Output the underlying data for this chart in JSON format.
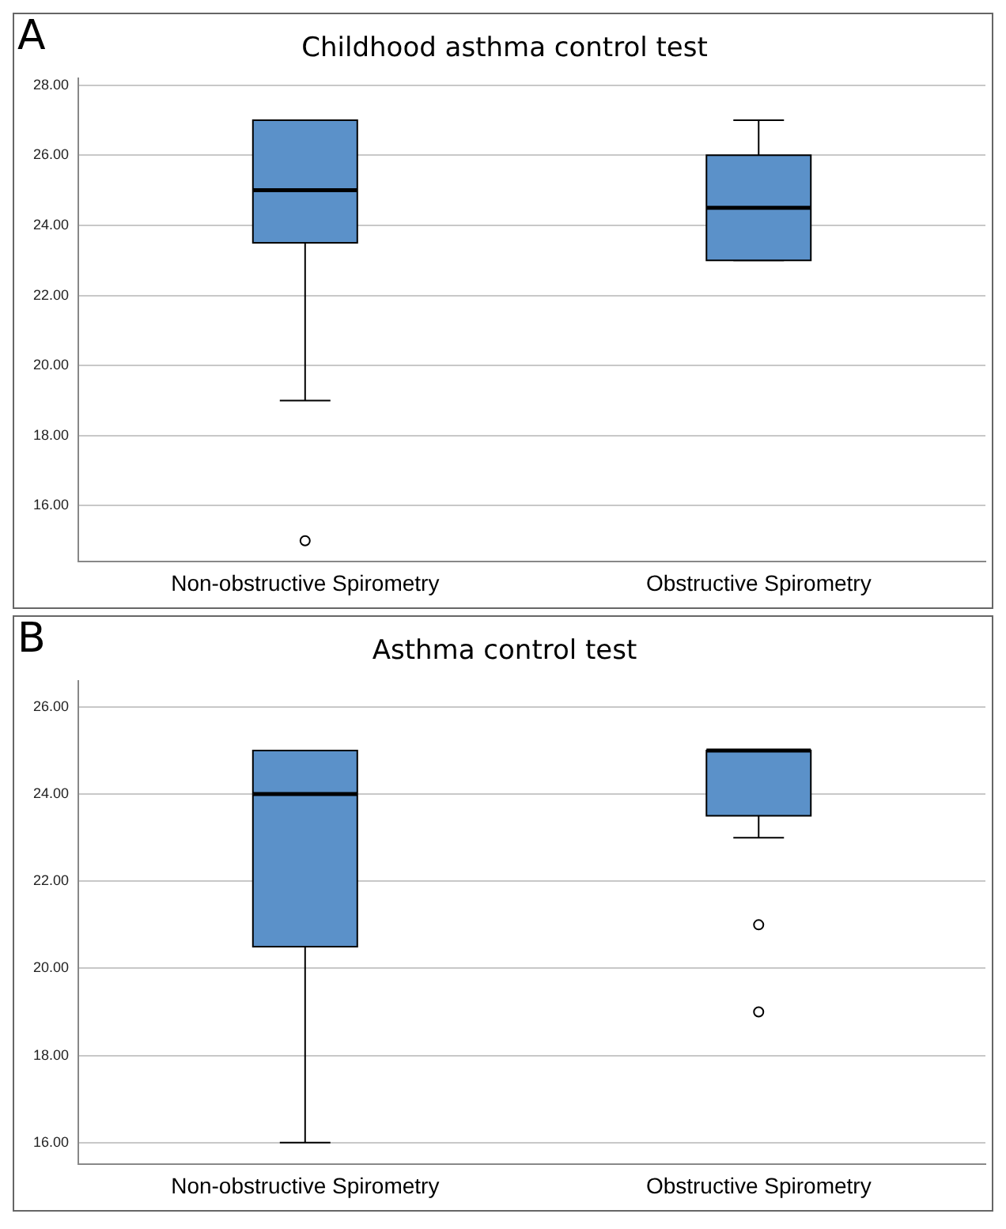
{
  "chart_data": [
    {
      "type": "box",
      "title": "Childhood asthma control test",
      "annotations": [
        "A"
      ],
      "categories": [
        "Non-obstructive Spirometry",
        "Obstructive Spirometry"
      ],
      "color": "#5b91c9",
      "ylim": [
        14.4,
        28.2
      ],
      "yticks": [
        {
          "value": 16,
          "label": "16.00"
        },
        {
          "value": 18,
          "label": "18.00"
        },
        {
          "value": 20,
          "label": "20.00"
        },
        {
          "value": 22,
          "label": "22.00"
        },
        {
          "value": 24,
          "label": "24.00"
        },
        {
          "value": 26,
          "label": "26.00"
        },
        {
          "value": 28,
          "label": "28.00"
        }
      ],
      "grid": "y",
      "boxes": [
        {
          "low": 19,
          "q1": 23.5,
          "median": 25,
          "q3": 27,
          "high": 27,
          "outliers": [
            15
          ]
        },
        {
          "low": 23,
          "q1": 23,
          "median": 24.5,
          "q3": 26,
          "high": 27
        }
      ]
    },
    {
      "type": "box",
      "title": "Asthma control test",
      "annotations": [
        "B"
      ],
      "categories": [
        "Non-obstructive Spirometry",
        "Obstructive Spirometry"
      ],
      "color": "#5b91c9",
      "ylim": [
        15.5,
        26.6
      ],
      "yticks": [
        {
          "value": 16,
          "label": "16.00"
        },
        {
          "value": 18,
          "label": "18.00"
        },
        {
          "value": 20,
          "label": "20.00"
        },
        {
          "value": 22,
          "label": "22.00"
        },
        {
          "value": 24,
          "label": "24.00"
        },
        {
          "value": 26,
          "label": "26.00"
        }
      ],
      "grid": "y",
      "boxes": [
        {
          "low": 16,
          "q1": 20.5,
          "median": 24,
          "q3": 25,
          "high": 25
        },
        {
          "low": 23,
          "q1": 23.5,
          "median": 25,
          "q3": 25,
          "high": 25,
          "outliers": [
            21,
            19
          ]
        }
      ]
    }
  ]
}
